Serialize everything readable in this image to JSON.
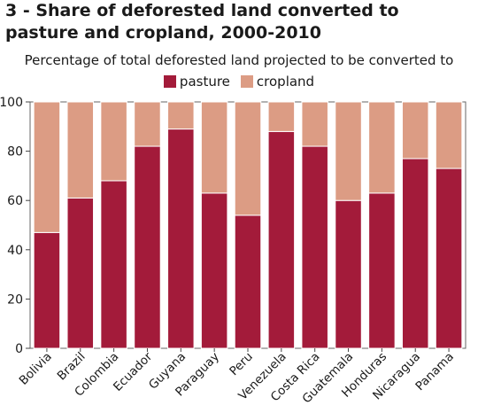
{
  "colors": {
    "pasture": "#a31b3a",
    "cropland": "#dc9c84",
    "bar_border": "#ffffff"
  },
  "chart_data": {
    "type": "bar",
    "stacked": true,
    "title": "3 - Share of deforested land converted to pasture and cropland, 2000-2010",
    "subtitle": "Percentage of total deforested land projected to be converted to",
    "xlabel": "",
    "ylabel": "",
    "ylim": [
      0,
      100
    ],
    "yticks": [
      "0",
      "20",
      "40",
      "60",
      "80",
      "100"
    ],
    "legend_position": "top-center",
    "grid": false,
    "categories": [
      "Bolivia",
      "Brazil",
      "Colombia",
      "Ecuador",
      "Guyana",
      "Paraguay",
      "Peru",
      "Venezuela",
      "Costa Rica",
      "Guatemala",
      "Honduras",
      "Nicaragua",
      "Panama"
    ],
    "series": [
      {
        "name": "pasture",
        "values": [
          47,
          61,
          68,
          82,
          89,
          63,
          54,
          88,
          82,
          60,
          63,
          77,
          73
        ]
      },
      {
        "name": "cropland",
        "values": [
          53,
          39,
          32,
          18,
          11,
          37,
          46,
          12,
          18,
          40,
          37,
          23,
          27
        ]
      }
    ]
  }
}
